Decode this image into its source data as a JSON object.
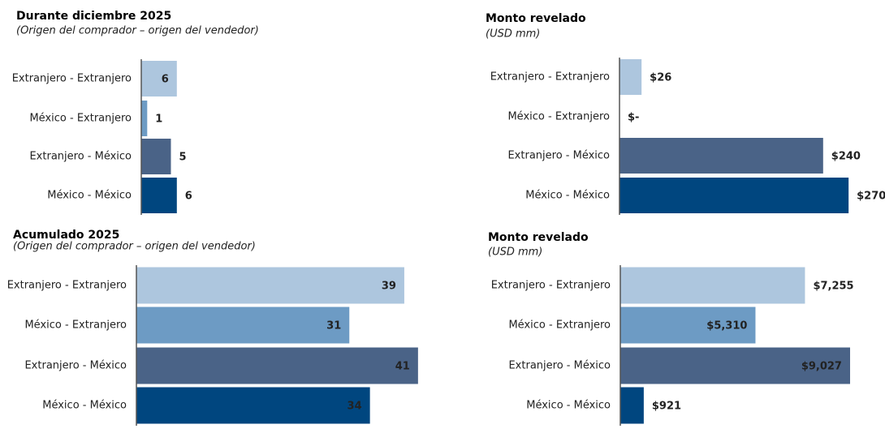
{
  "chart_data": [
    {
      "type": "bar",
      "orientation": "horizontal",
      "title": "Durante diciembre 2025",
      "subtitle": "(Origen del comprador – origen del vendedor)",
      "categories": [
        "Extranjero - Extranjero",
        "México - Extranjero",
        "Extranjero - México",
        "México - México"
      ],
      "values": [
        6,
        1,
        5,
        6
      ],
      "colors": [
        "#adc6de",
        "#6d9bc4",
        "#4a6387",
        "#00467f"
      ]
    },
    {
      "type": "bar",
      "orientation": "horizontal",
      "title": "Monto revelado",
      "subtitle": "(USD mm)",
      "categories": [
        "Extranjero - Extranjero",
        "México - Extranjero",
        "Extranjero - México",
        "México - México"
      ],
      "values": [
        26,
        0,
        240,
        270
      ],
      "value_labels": [
        "$26",
        "$-",
        "$240",
        "$270"
      ],
      "colors": [
        "#adc6de",
        "#6d9bc4",
        "#4a6387",
        "#00467f"
      ]
    },
    {
      "type": "bar",
      "orientation": "horizontal",
      "title": "Acumulado 2025",
      "subtitle": "(Origen del comprador – origen del vendedor)",
      "categories": [
        "Extranjero - Extranjero",
        "México - Extranjero",
        "Extranjero - México",
        "México - México"
      ],
      "values": [
        39,
        31,
        41,
        34
      ],
      "colors": [
        "#adc6de",
        "#6d9bc4",
        "#4a6387",
        "#00467f"
      ]
    },
    {
      "type": "bar",
      "orientation": "horizontal",
      "title": "Monto revelado",
      "subtitle": "(USD mm)",
      "categories": [
        "Extranjero - Extranjero",
        "México - Extranjero",
        "Extranjero - México",
        "México - México"
      ],
      "values": [
        7255,
        5310,
        9027,
        921
      ],
      "value_labels": [
        "$7,255",
        "$5,310",
        "$9,027",
        "$921"
      ],
      "colors": [
        "#adc6de",
        "#6d9bc4",
        "#4a6387",
        "#00467f"
      ]
    }
  ]
}
